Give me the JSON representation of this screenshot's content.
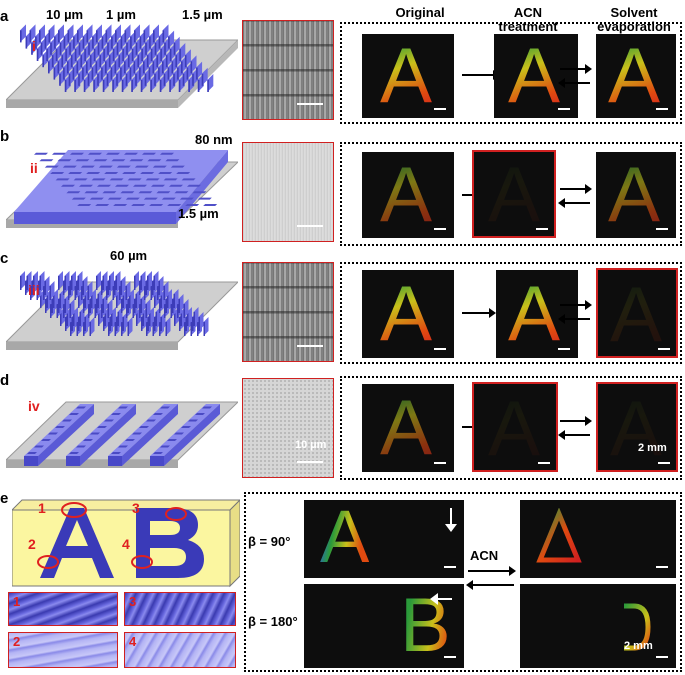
{
  "panels": {
    "a": {
      "label": "a",
      "roman": "i",
      "dims": [
        "10 µm",
        "1 µm",
        "1.5 µm"
      ]
    },
    "b": {
      "label": "b",
      "roman": "ii",
      "dims": [
        "80 nm",
        "1.5 µm"
      ]
    },
    "c": {
      "label": "c",
      "roman": "iii",
      "dims": [
        "60 µm"
      ]
    },
    "d": {
      "label": "d",
      "roman": "iv",
      "sem_scale": "10 µm",
      "photo_scale": "2 mm"
    },
    "e": {
      "label": "e",
      "markers": [
        "1",
        "2",
        "3",
        "4"
      ],
      "insets": [
        "1",
        "3",
        "2",
        "4"
      ],
      "beta_90": "β = 90°",
      "beta_180": "β = 180°",
      "treatment": "ACN",
      "photo_scale": "2 mm",
      "letters": [
        "A",
        "B"
      ]
    }
  },
  "column_headers": {
    "original": "Original",
    "acn": "ACN\ntreatment",
    "solvent": "Solvent\nevaporation"
  },
  "letter": "A",
  "colors": {
    "accent_red": "#d02020",
    "structure_blue": "#5050d8",
    "highlight_yellow": "#fbf6a0"
  }
}
